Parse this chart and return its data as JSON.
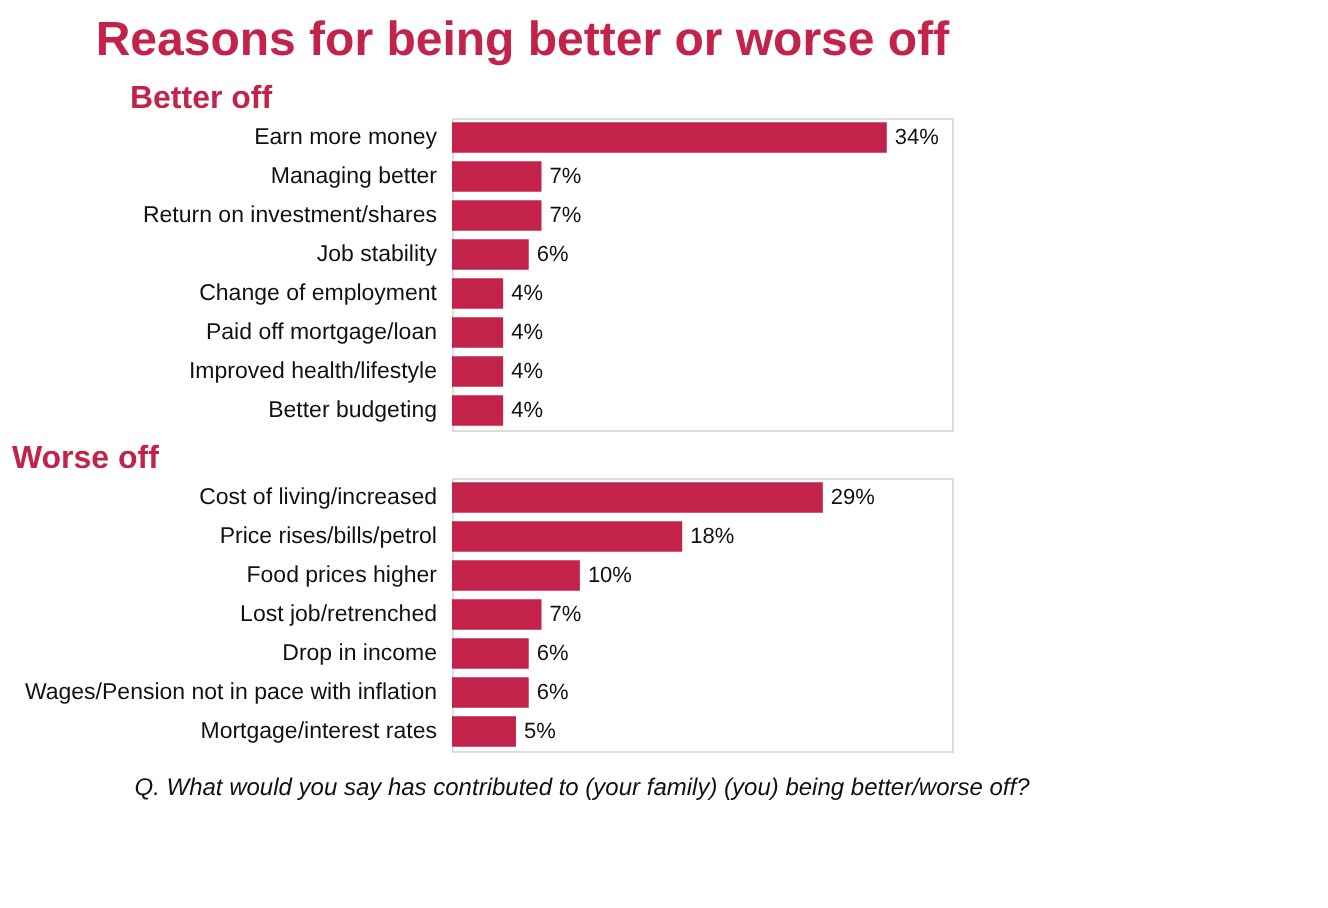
{
  "chart_data": [
    {
      "type": "bar",
      "orientation": "horizontal",
      "title": "Reasons for being better or worse off",
      "subtitle": "Better off",
      "color": "#c3234b",
      "categories": [
        "Earn more money",
        "Managing better",
        "Return on investment/shares",
        "Job stability",
        "Change of employment",
        "Paid off mortgage/loan",
        "Improved health/lifestyle",
        "Better budgeting"
      ],
      "values": [
        34,
        7,
        7,
        6,
        4,
        4,
        4,
        4
      ],
      "value_labels": [
        "34%",
        "7%",
        "7%",
        "6%",
        "4%",
        "4%",
        "4%",
        "4%"
      ]
    },
    {
      "type": "bar",
      "orientation": "horizontal",
      "subtitle": "Worse off",
      "color": "#c3234b",
      "categories": [
        "Cost of living/increased",
        "Price rises/bills/petrol",
        "Food prices higher",
        "Lost job/retrenched",
        "Drop in income",
        "Wages/Pension not in pace with inflation",
        "Mortgage/interest rates"
      ],
      "values": [
        29,
        18,
        10,
        7,
        6,
        6,
        5
      ],
      "value_labels": [
        "29%",
        "18%",
        "10%",
        "7%",
        "6%",
        "6%",
        "5%"
      ],
      "annotations": [
        "Q. What would you say has contributed to (your family) (you)  being better/worse off?"
      ]
    }
  ]
}
